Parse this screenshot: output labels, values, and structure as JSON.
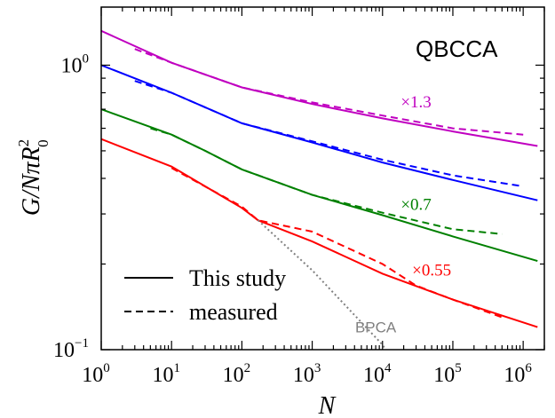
{
  "chart_data": {
    "type": "line",
    "title": "QBCCA",
    "xlabel": "N",
    "ylabel": "G/NπR",
    "ylabel_sup": "2",
    "ylabel_sub": "0",
    "xscale": "log",
    "yscale": "log",
    "xlim": [
      1,
      2000000
    ],
    "ylim": [
      0.1,
      1.6
    ],
    "x_ticks": [
      {
        "base": "10",
        "exp": "0",
        "value": 1
      },
      {
        "base": "10",
        "exp": "1",
        "value": 10
      },
      {
        "base": "10",
        "exp": "2",
        "value": 100
      },
      {
        "base": "10",
        "exp": "3",
        "value": 1000
      },
      {
        "base": "10",
        "exp": "4",
        "value": 10000
      },
      {
        "base": "10",
        "exp": "5",
        "value": 100000
      },
      {
        "base": "10",
        "exp": "6",
        "value": 1000000
      }
    ],
    "y_ticks": [
      {
        "base": "10",
        "exp": "0",
        "value": 1
      },
      {
        "base": "10",
        "exp": "−1",
        "value": 0.1
      }
    ],
    "annotations": [
      {
        "text": "×1.3",
        "x": 30000,
        "y": 0.71,
        "color": "#c000c0"
      },
      {
        "text": "×0.7",
        "x": 30000,
        "y": 0.31,
        "color": "#008000"
      },
      {
        "text": "×0.55",
        "x": 50000,
        "y": 0.182,
        "color": "#ff0000"
      },
      {
        "text": "BPCA",
        "x": 8000,
        "y": 0.115,
        "color": "#808080"
      }
    ],
    "legend": {
      "position": "lower-left",
      "entries": [
        {
          "label": "This study",
          "style": "solid"
        },
        {
          "label": "measured",
          "style": "dashed"
        }
      ]
    },
    "series": [
      {
        "group": "magenta",
        "color": "#c000c0",
        "style": "solid",
        "x": [
          1,
          10,
          100,
          1000,
          10000,
          100000,
          1600000
        ],
        "y": [
          1.32,
          1.02,
          0.835,
          0.73,
          0.65,
          0.585,
          0.52
        ]
      },
      {
        "group": "magenta",
        "color": "#c000c0",
        "style": "dashed",
        "x": [
          3,
          10,
          100,
          1000,
          10000,
          100000,
          1000000
        ],
        "y": [
          1.14,
          1.02,
          0.835,
          0.74,
          0.665,
          0.6,
          0.57
        ]
      },
      {
        "group": "blue",
        "color": "#0000ff",
        "style": "solid",
        "x": [
          1,
          10,
          100,
          1000,
          10000,
          100000,
          1600000
        ],
        "y": [
          1.0,
          0.8,
          0.625,
          0.535,
          0.455,
          0.395,
          0.335
        ]
      },
      {
        "group": "blue",
        "color": "#0000ff",
        "style": "dashed",
        "x": [
          3,
          10,
          100,
          1000,
          10000,
          100000,
          1000000
        ],
        "y": [
          0.88,
          0.8,
          0.625,
          0.54,
          0.465,
          0.41,
          0.375
        ]
      },
      {
        "group": "green",
        "color": "#008000",
        "style": "solid",
        "x": [
          1,
          10,
          30,
          100,
          1000,
          10000,
          100000,
          1600000
        ],
        "y": [
          0.7,
          0.57,
          0.5,
          0.43,
          0.35,
          0.297,
          0.25,
          0.205
        ]
      },
      {
        "group": "green",
        "color": "#008000",
        "style": "dashed",
        "x": [
          5,
          10,
          30,
          100,
          1000,
          10000,
          100000,
          500000
        ],
        "y": [
          0.6,
          0.57,
          0.5,
          0.43,
          0.35,
          0.303,
          0.265,
          0.255
        ]
      },
      {
        "group": "red",
        "color": "#ff0000",
        "style": "solid",
        "x": [
          1,
          10,
          100,
          170,
          1000,
          10000,
          100000,
          1600000
        ],
        "y": [
          0.55,
          0.44,
          0.315,
          0.285,
          0.24,
          0.185,
          0.15,
          0.12
        ]
      },
      {
        "group": "red",
        "color": "#ff0000",
        "style": "dashed",
        "x": [
          10,
          100,
          170,
          1000,
          10000,
          30000,
          100000,
          500000
        ],
        "y": [
          0.435,
          0.318,
          0.285,
          0.26,
          0.2,
          0.168,
          0.15,
          0.13
        ]
      },
      {
        "group": "bpca",
        "color": "#808080",
        "style": "dotted",
        "x": [
          170,
          1000,
          10000,
          11000
        ],
        "y": [
          0.285,
          0.19,
          0.104,
          0.1
        ]
      }
    ]
  }
}
